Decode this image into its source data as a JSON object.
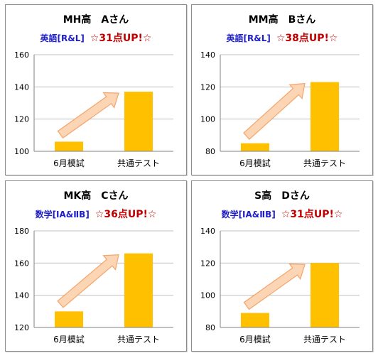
{
  "chart_data": [
    {
      "type": "bar",
      "title": "MH高　Aさん",
      "subject": "英語[R&L]",
      "badge": "☆31点UP!☆",
      "categories": [
        "6月模試",
        "共通テスト"
      ],
      "values": [
        106,
        137
      ],
      "ylim": [
        100,
        160
      ],
      "yticks": [
        100,
        120,
        140,
        160
      ],
      "grid": true
    },
    {
      "type": "bar",
      "title": "MM高　Bさん",
      "subject": "英語[R&L]",
      "badge": "☆38点UP!☆",
      "categories": [
        "6月模試",
        "共通テスト"
      ],
      "values": [
        85,
        123
      ],
      "ylim": [
        80,
        140
      ],
      "yticks": [
        80,
        100,
        120,
        140
      ],
      "grid": true
    },
    {
      "type": "bar",
      "title": "MK高　Cさん",
      "subject": "数学[ⅠA&ⅡB]",
      "badge": "☆36点UP!☆",
      "categories": [
        "6月模試",
        "共通テスト"
      ],
      "values": [
        130,
        166
      ],
      "ylim": [
        120,
        180
      ],
      "yticks": [
        120,
        140,
        160,
        180
      ],
      "grid": true
    },
    {
      "type": "bar",
      "title": "S高　Dさん",
      "subject": "数学[ⅠA&ⅡB]",
      "badge": "☆31点UP!☆",
      "categories": [
        "6月模試",
        "共通テスト"
      ],
      "values": [
        89,
        120
      ],
      "ylim": [
        80,
        140
      ],
      "yticks": [
        80,
        100,
        120,
        140
      ],
      "grid": true
    }
  ],
  "colors": {
    "bar": "#ffc000",
    "grid": "#bfbfbf",
    "axis": "#808080",
    "arrow_fill": "#fcd5b5",
    "arrow_stroke": "#f4a46a",
    "subject": "#1f1fc8",
    "badge": "#c00000"
  }
}
